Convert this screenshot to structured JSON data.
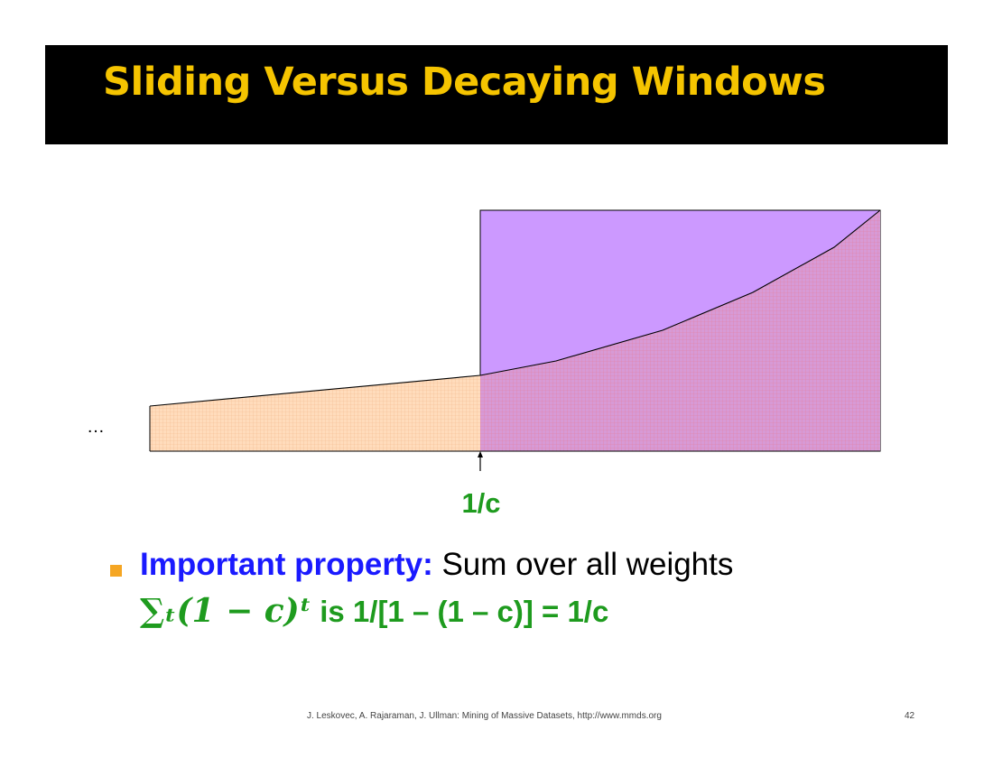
{
  "slide": {
    "title": "Sliding Versus Decaying Windows",
    "ellipsis": "…",
    "marker_label": "1/c",
    "bullet": {
      "lead": "Important property:",
      "rest": " Sum over all weights",
      "formula": "∑ₜ(1 − c)ᵗ",
      "formula_text": " is 1/[1 – (1 – c)] = 1/c"
    },
    "footer": "J. Leskovec, A. Rajaraman, J. Ullman: Mining of Massive Datasets, http://www.mmds.org",
    "page_number": "42"
  },
  "colors": {
    "title_bg": "#000000",
    "title_text": "#f5c400",
    "sliding_window": "#cc99ff",
    "decay_fill": "#ffdcbc",
    "decay_grid": "#f3b98f",
    "overlap_fill": "#d79ad6",
    "overlap_grid": "#e67f9e",
    "accent_green": "#1e9b1e",
    "accent_blue": "#1a1aff",
    "bullet_orange": "#f5a623"
  }
}
